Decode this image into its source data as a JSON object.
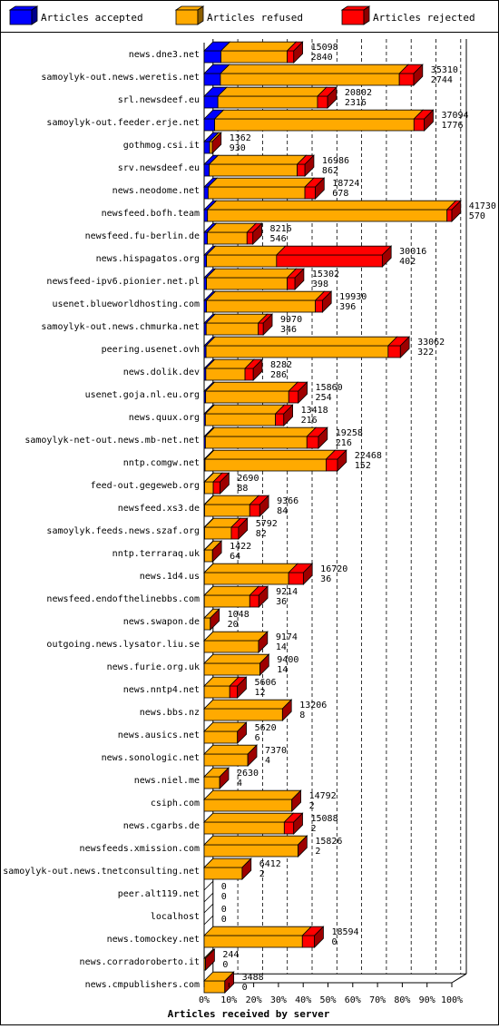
{
  "legend": {
    "accepted": {
      "label": "Articles accepted",
      "color": "#0000ff"
    },
    "refused": {
      "label": "Articles refused",
      "color": "#ffaa00"
    },
    "rejected": {
      "label": "Articles rejected",
      "color": "#ff0000"
    }
  },
  "chart_data": {
    "type": "bar",
    "orientation": "horizontal",
    "stacked": true,
    "xlabel": "Articles received by server",
    "x_ticks": [
      "0%",
      "10%",
      "20%",
      "30%",
      "40%",
      "50%",
      "60%",
      "70%",
      "80%",
      "90%",
      "100%"
    ],
    "xlim": [
      0,
      41730
    ],
    "grid": true,
    "legend_position": "top",
    "categories": [
      "news.dne3.net",
      "samoylyk-out.news.weretis.net",
      "srl.newsdeef.eu",
      "samoylyk-out.feeder.erje.net",
      "gothmog.csi.it",
      "srv.newsdeef.eu",
      "news.neodome.net",
      "newsfeed.bofh.team",
      "newsfeed.fu-berlin.de",
      "news.hispagatos.org",
      "newsfeed-ipv6.pionier.net.pl",
      "usenet.blueworldhosting.com",
      "samoylyk-out.news.chmurka.net",
      "peering.usenet.ovh",
      "news.dolik.dev",
      "usenet.goja.nl.eu.org",
      "news.quux.org",
      "samoylyk-net-out.news.mb-net.net",
      "nntp.comgw.net",
      "feed-out.gegeweb.org",
      "newsfeed.xs3.de",
      "samoylyk.feeds.news.szaf.org",
      "nntp.terraraq.uk",
      "news.1d4.us",
      "newsfeed.endofthelinebbs.com",
      "news.swapon.de",
      "outgoing.news.lysator.liu.se",
      "news.furie.org.uk",
      "news.nntp4.net",
      "news.bbs.nz",
      "news.ausics.net",
      "news.sonologic.net",
      "news.niel.me",
      "csiph.com",
      "news.cgarbs.de",
      "newsfeeds.xmission.com",
      "samoylyk-out.news.tnetconsulting.net",
      "peer.alt119.net",
      "localhost",
      "news.tomockey.net",
      "news.corradoroberto.it",
      "news.cmpublishers.com"
    ],
    "totals": [
      15098,
      35310,
      20802,
      37094,
      1362,
      16986,
      18724,
      41730,
      8216,
      30016,
      15302,
      19930,
      9970,
      33062,
      8282,
      15860,
      13418,
      19258,
      22468,
      2690,
      9366,
      5792,
      1422,
      16720,
      9214,
      1048,
      9174,
      9400,
      5606,
      13206,
      5620,
      7370,
      2630,
      14792,
      15088,
      15826,
      6412,
      0,
      0,
      18594,
      244,
      3488
    ],
    "accepted_counts": [
      2840,
      2744,
      2316,
      1776,
      930,
      862,
      678,
      570,
      546,
      402,
      398,
      396,
      346,
      322,
      286,
      254,
      216,
      216,
      152,
      88,
      84,
      82,
      64,
      36,
      36,
      20,
      14,
      14,
      12,
      8,
      6,
      4,
      4,
      2,
      2,
      2,
      2,
      0,
      0,
      0,
      0,
      0
    ],
    "series": [
      {
        "name": "Articles accepted",
        "values": [
          2840,
          2744,
          2316,
          1776,
          930,
          862,
          678,
          570,
          546,
          402,
          398,
          396,
          346,
          322,
          286,
          254,
          216,
          216,
          152,
          88,
          84,
          82,
          64,
          36,
          36,
          20,
          14,
          14,
          12,
          8,
          6,
          4,
          4,
          2,
          2,
          2,
          2,
          0,
          0,
          0,
          0,
          0
        ]
      },
      {
        "name": "Articles refused",
        "values": [
          11150,
          30140,
          16790,
          33580,
          430,
          14820,
          16300,
          40350,
          6680,
          11800,
          13600,
          18350,
          8780,
          30680,
          6600,
          14000,
          11800,
          17100,
          20400,
          1450,
          7600,
          4500,
          1350,
          14200,
          7650,
          1020,
          9150,
          9380,
          4300,
          13190,
          5610,
          7360,
          2620,
          14780,
          13500,
          15810,
          6400,
          0,
          0,
          16550,
          240,
          3480
        ]
      },
      {
        "name": "Articles rejected",
        "values": [
          1108,
          2426,
          1696,
          1738,
          2,
          1304,
          1746,
          810,
          990,
          17814,
          1304,
          1184,
          844,
          2060,
          1396,
          1606,
          1402,
          1942,
          1916,
          1152,
          1682,
          1210,
          8,
          2484,
          1528,
          8,
          10,
          6,
          1294,
          8,
          4,
          6,
          6,
          10,
          1586,
          14,
          10,
          0,
          0,
          2044,
          4,
          8
        ]
      }
    ]
  }
}
